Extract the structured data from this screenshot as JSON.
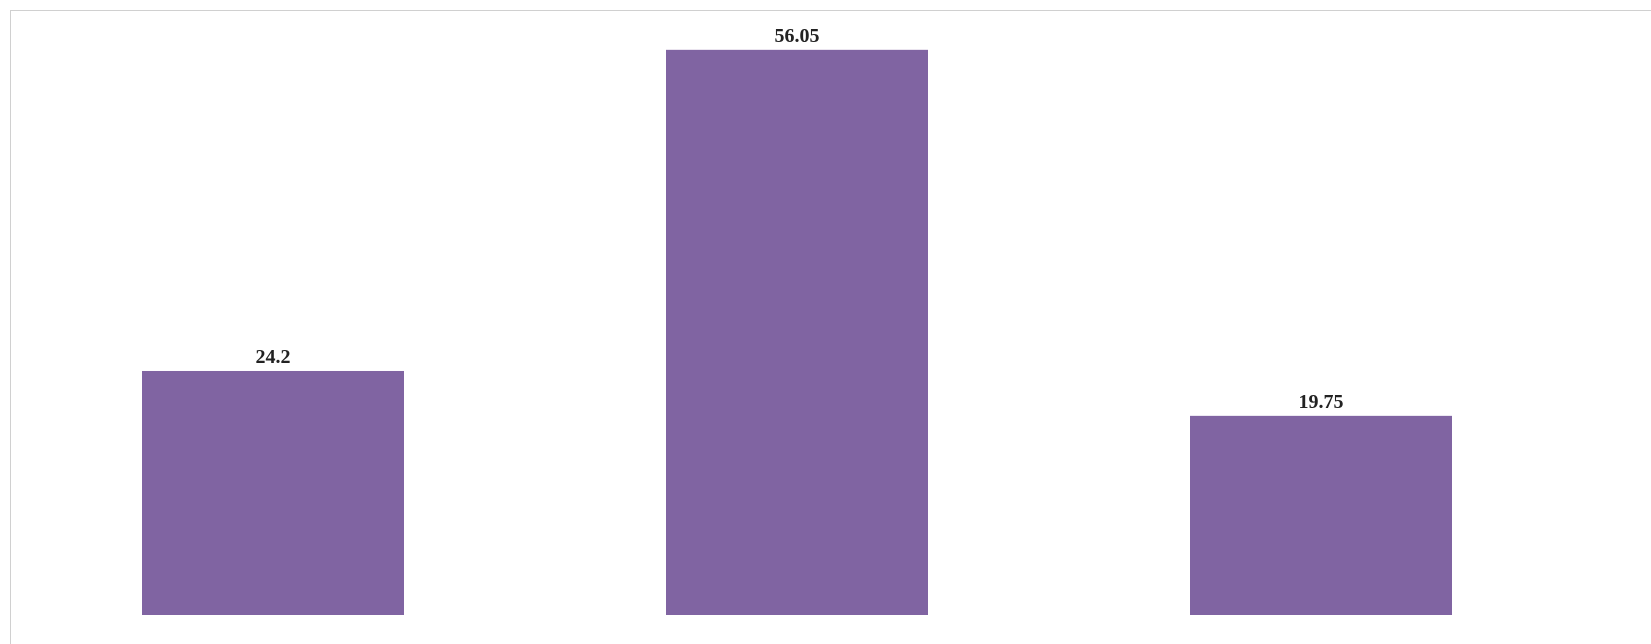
{
  "chart_data": {
    "type": "bar",
    "categories": [
      null,
      null,
      null
    ],
    "values": [
      24.2,
      56.05,
      19.75
    ],
    "color": "#8064a2",
    "ylim": [
      0,
      60
    ],
    "grid": false
  }
}
